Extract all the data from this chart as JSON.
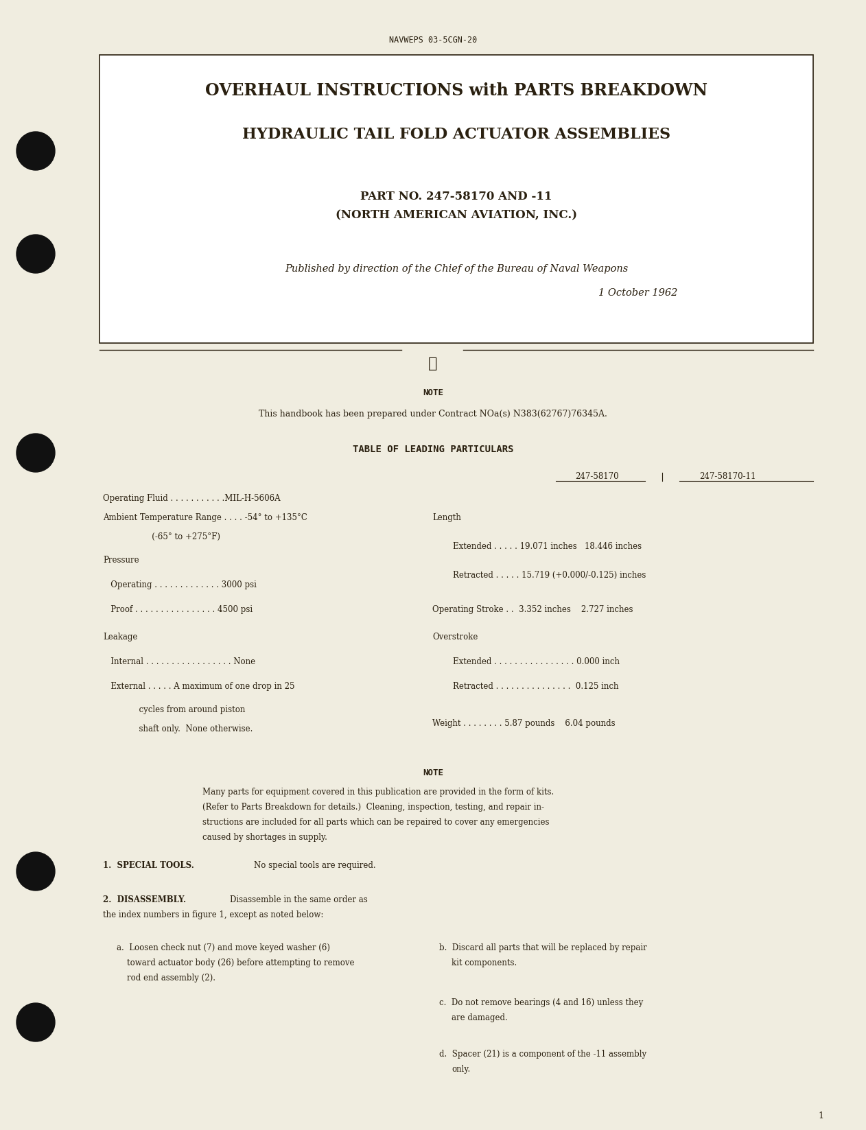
{
  "bg_color": "#f0ede0",
  "text_color": "#2a2010",
  "page_width": 12.62,
  "page_height": 16.47,
  "dpi": 100,
  "header_doc_number": "NAVWEPS 03-5CGN-20",
  "title_line1": "OVERHAUL INSTRUCTIONS with PARTS BREAKDOWN",
  "title_line2": "HYDRAULIC TAIL FOLD ACTUATOR ASSEMBLIES",
  "title_line3": "PART NO. 247-58170 AND -11",
  "title_line4": "(NORTH AMERICAN AVIATION, INC.)",
  "published_line": "Published by direction of the Chief of the Bureau of Naval Weapons",
  "date_line": "1 October 1962",
  "note1_label": "NOTE",
  "note1_text": "This handbook has been prepared under Contract NOa(s) N383(62767)76345A.",
  "table_heading": "TABLE OF LEADING PARTICULARS",
  "col_header1": "247-58170",
  "col_header2": "247-58170-11",
  "note2_label": "NOTE",
  "page_num": "1",
  "box_bg": "#ffffff"
}
